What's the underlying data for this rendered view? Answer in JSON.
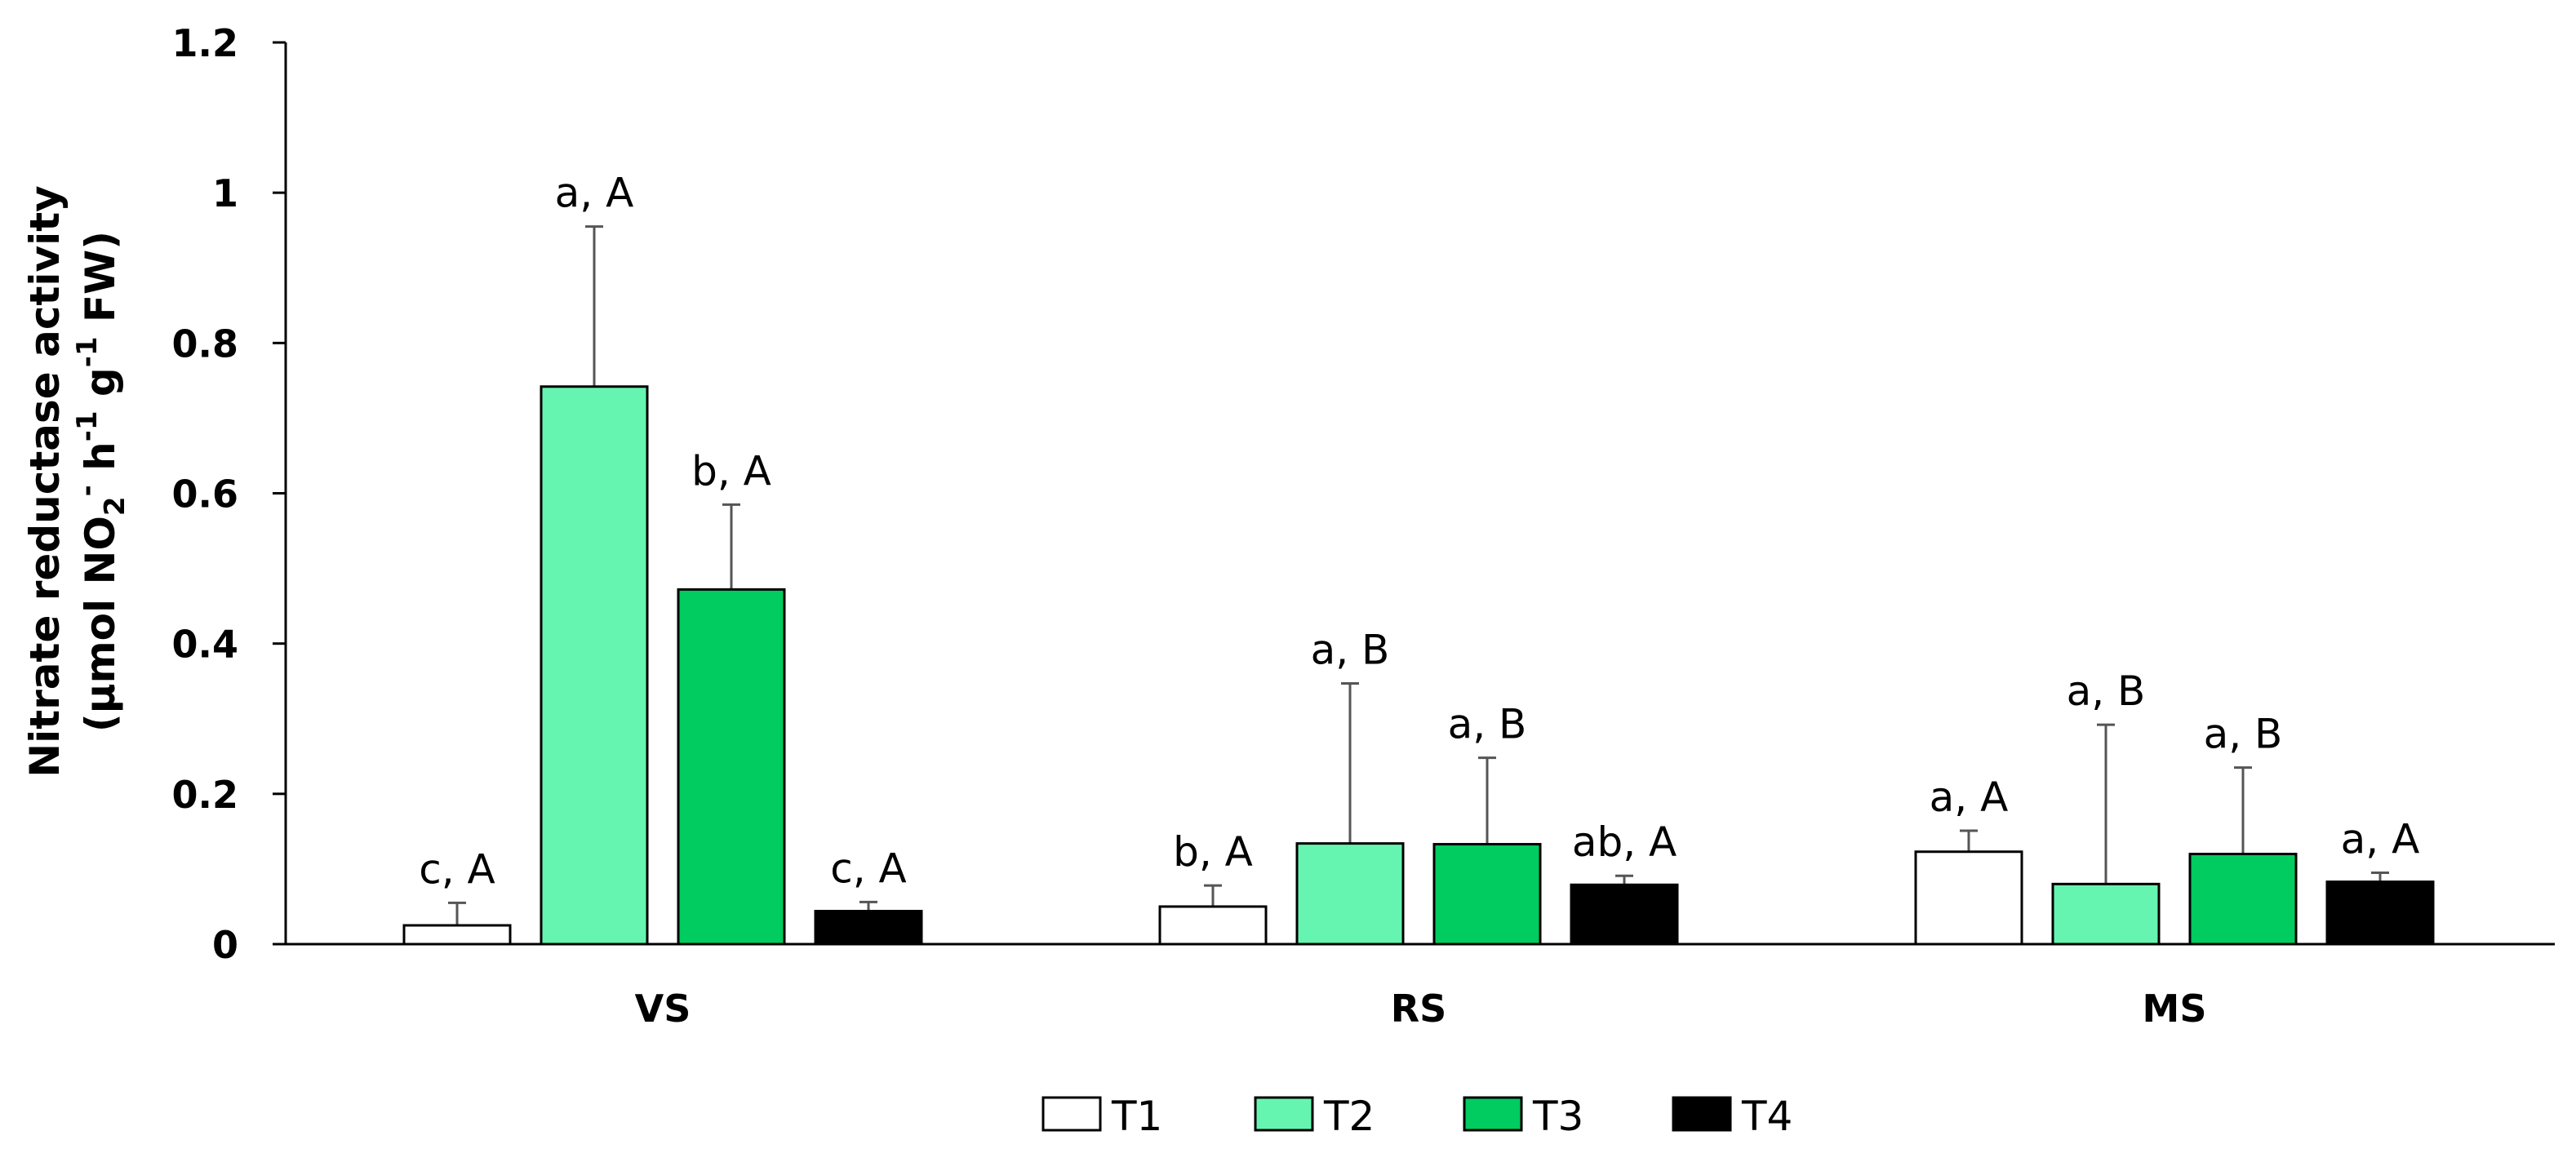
{
  "chart_data": {
    "type": "bar",
    "ylabel_line1": "Nitrate reductase activity",
    "ylabel_line2": {
      "prefix": "(µmol NO",
      "sub": "2",
      "sup1": "-",
      "mid": " h",
      "sup2": "-1",
      "mid2": " g",
      "sup3": "-1",
      "suffix": " FW)"
    },
    "xlabel": "",
    "ylim": [
      0,
      1.2
    ],
    "yticks": [
      "0",
      "0.2",
      "0.4",
      "0.6",
      "0.8",
      "1",
      "1.2"
    ],
    "categories": [
      "VS",
      "RS",
      "MS"
    ],
    "legend_position": "bottom-center",
    "series": [
      {
        "name": "T1",
        "color": "#ffffff",
        "values": [
          0.025,
          0.05,
          0.123
        ],
        "errors": [
          0.03,
          0.028,
          0.028
        ],
        "labels": [
          "c, A",
          "b, A",
          "a, A"
        ]
      },
      {
        "name": "T2",
        "color": "#66f5b0",
        "values": [
          0.742,
          0.134,
          0.08
        ],
        "errors": [
          0.213,
          0.213,
          0.212
        ],
        "labels": [
          "a, A",
          "a, B",
          "a, B"
        ]
      },
      {
        "name": "T3",
        "color": "#00cc5f",
        "values": [
          0.472,
          0.133,
          0.12
        ],
        "errors": [
          0.113,
          0.115,
          0.115
        ],
        "labels": [
          "b, A",
          "a, B",
          "a, B"
        ]
      },
      {
        "name": "T4",
        "color": "#000000",
        "values": [
          0.044,
          0.079,
          0.083
        ],
        "errors": [
          0.012,
          0.012,
          0.012
        ],
        "labels": [
          "c, A",
          "ab, A",
          "a, A"
        ]
      }
    ]
  }
}
